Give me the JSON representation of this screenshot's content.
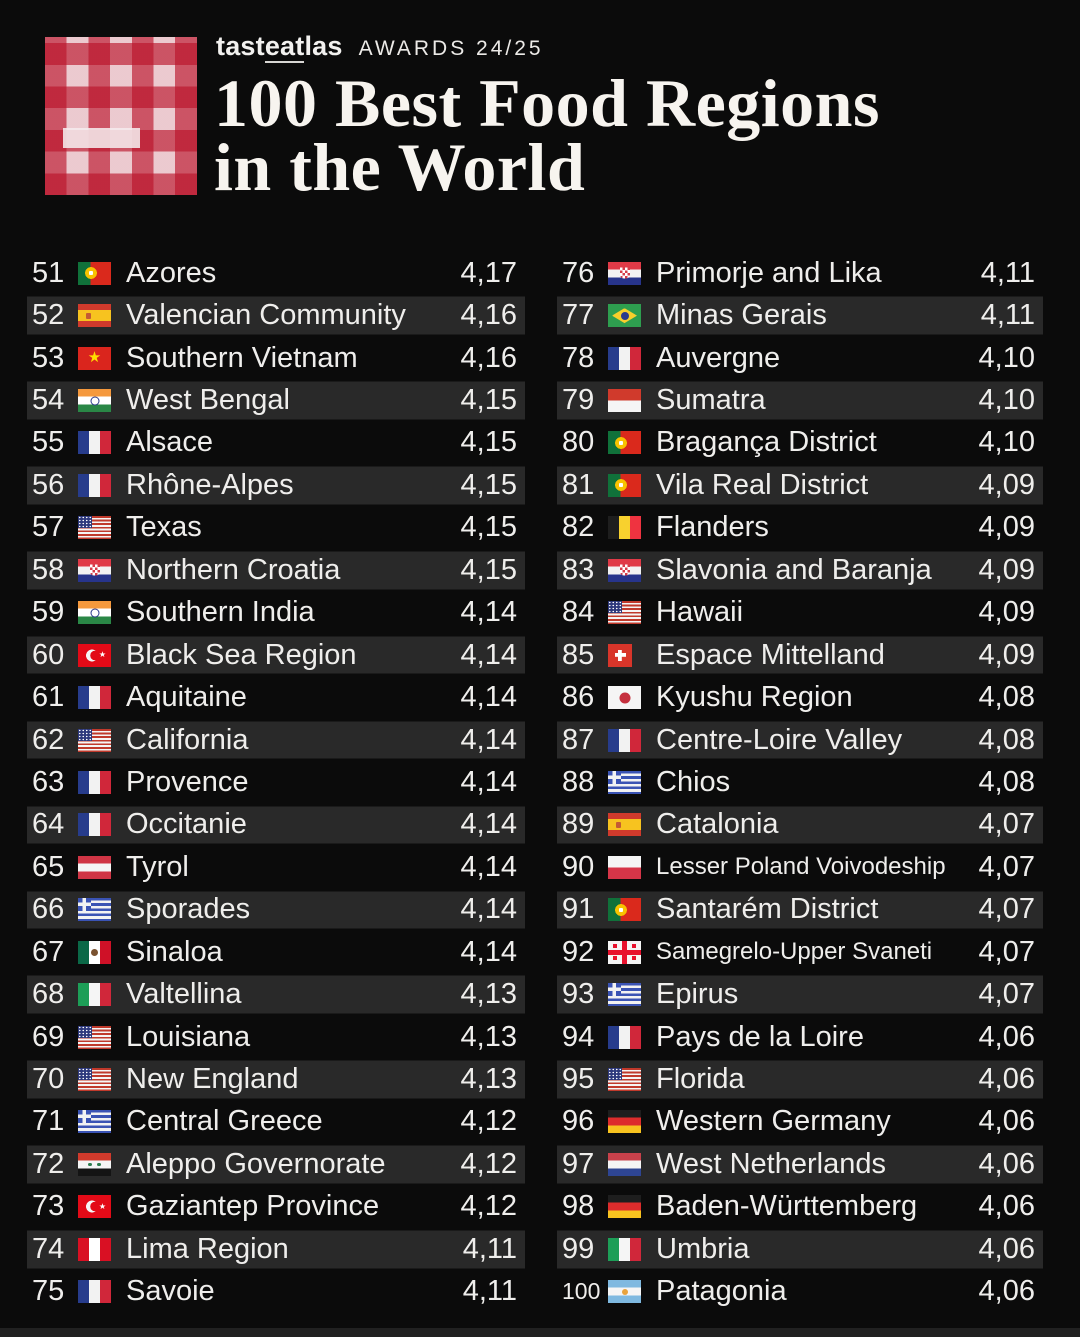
{
  "header": {
    "brand_pre": "tast",
    "brand_underlined": "eat",
    "brand_post": "las",
    "awards_label": "AWARDS 24/25",
    "title_line1": "100 Best Food Regions",
    "title_line2": "in the World"
  },
  "colors": {
    "background": "#0b0b0b",
    "row_stripe": "#292929",
    "text": "#efeeec",
    "title_text": "#f7f4ef",
    "footer_strip": "#212121",
    "logo_red": "#b91128",
    "logo_base": "#f2e2e5"
  },
  "list": {
    "columns": [
      {
        "entries": [
          {
            "rank": "51",
            "flag": "portugal",
            "name": "Azores",
            "score": "4,17"
          },
          {
            "rank": "52",
            "flag": "spain",
            "name": "Valencian Community",
            "score": "4,16"
          },
          {
            "rank": "53",
            "flag": "vietnam",
            "name": "Southern Vietnam",
            "score": "4,16"
          },
          {
            "rank": "54",
            "flag": "india",
            "name": "West Bengal",
            "score": "4,15"
          },
          {
            "rank": "55",
            "flag": "france",
            "name": "Alsace",
            "score": "4,15"
          },
          {
            "rank": "56",
            "flag": "france",
            "name": "Rhône-Alpes",
            "score": "4,15"
          },
          {
            "rank": "57",
            "flag": "usa",
            "name": "Texas",
            "score": "4,15"
          },
          {
            "rank": "58",
            "flag": "croatia",
            "name": "Northern Croatia",
            "score": "4,15"
          },
          {
            "rank": "59",
            "flag": "india",
            "name": "Southern India",
            "score": "4,14"
          },
          {
            "rank": "60",
            "flag": "turkey",
            "name": "Black Sea Region",
            "score": "4,14"
          },
          {
            "rank": "61",
            "flag": "france",
            "name": "Aquitaine",
            "score": "4,14"
          },
          {
            "rank": "62",
            "flag": "usa",
            "name": "California",
            "score": "4,14"
          },
          {
            "rank": "63",
            "flag": "france",
            "name": "Provence",
            "score": "4,14"
          },
          {
            "rank": "64",
            "flag": "france",
            "name": "Occitanie",
            "score": "4,14"
          },
          {
            "rank": "65",
            "flag": "austria",
            "name": "Tyrol",
            "score": "4,14"
          },
          {
            "rank": "66",
            "flag": "greece",
            "name": "Sporades",
            "score": "4,14"
          },
          {
            "rank": "67",
            "flag": "mexico",
            "name": "Sinaloa",
            "score": "4,14"
          },
          {
            "rank": "68",
            "flag": "italy",
            "name": "Valtellina",
            "score": "4,13"
          },
          {
            "rank": "69",
            "flag": "usa",
            "name": "Louisiana",
            "score": "4,13"
          },
          {
            "rank": "70",
            "flag": "usa",
            "name": "New England",
            "score": "4,13"
          },
          {
            "rank": "71",
            "flag": "greece",
            "name": "Central Greece",
            "score": "4,12"
          },
          {
            "rank": "72",
            "flag": "syria",
            "name": "Aleppo Governorate",
            "score": "4,12"
          },
          {
            "rank": "73",
            "flag": "turkey",
            "name": "Gaziantep Province",
            "score": "4,12"
          },
          {
            "rank": "74",
            "flag": "peru",
            "name": "Lima Region",
            "score": "4,11"
          },
          {
            "rank": "75",
            "flag": "france",
            "name": "Savoie",
            "score": "4,11"
          }
        ]
      },
      {
        "entries": [
          {
            "rank": "76",
            "flag": "croatia",
            "name": "Primorje and Lika",
            "score": "4,11"
          },
          {
            "rank": "77",
            "flag": "brazil",
            "name": "Minas Gerais",
            "score": "4,11"
          },
          {
            "rank": "78",
            "flag": "france",
            "name": "Auvergne",
            "score": "4,10"
          },
          {
            "rank": "79",
            "flag": "indonesia",
            "name": "Sumatra",
            "score": "4,10"
          },
          {
            "rank": "80",
            "flag": "portugal",
            "name": "Bragança District",
            "score": "4,10"
          },
          {
            "rank": "81",
            "flag": "portugal",
            "name": "Vila Real District",
            "score": "4,09"
          },
          {
            "rank": "82",
            "flag": "belgium",
            "name": "Flanders",
            "score": "4,09"
          },
          {
            "rank": "83",
            "flag": "croatia",
            "name": "Slavonia and Baranja",
            "score": "4,09"
          },
          {
            "rank": "84",
            "flag": "usa",
            "name": "Hawaii",
            "score": "4,09"
          },
          {
            "rank": "85",
            "flag": "switzerland",
            "name": "Espace Mittelland",
            "score": "4,09"
          },
          {
            "rank": "86",
            "flag": "japan",
            "name": "Kyushu Region",
            "score": "4,08"
          },
          {
            "rank": "87",
            "flag": "france",
            "name": "Centre-Loire Valley",
            "score": "4,08"
          },
          {
            "rank": "88",
            "flag": "greece",
            "name": "Chios",
            "score": "4,08"
          },
          {
            "rank": "89",
            "flag": "spain",
            "name": "Catalonia",
            "score": "4,07"
          },
          {
            "rank": "90",
            "flag": "poland",
            "name": "Lesser Poland Voivodeship",
            "score": "4,07"
          },
          {
            "rank": "91",
            "flag": "portugal",
            "name": "Santarém District",
            "score": "4,07"
          },
          {
            "rank": "92",
            "flag": "georgia",
            "name": "Samegrelo-Upper Svaneti",
            "score": "4,07"
          },
          {
            "rank": "93",
            "flag": "greece",
            "name": "Epirus",
            "score": "4,07"
          },
          {
            "rank": "94",
            "flag": "france",
            "name": "Pays de la Loire",
            "score": "4,06"
          },
          {
            "rank": "95",
            "flag": "usa",
            "name": "Florida",
            "score": "4,06"
          },
          {
            "rank": "96",
            "flag": "germany",
            "name": "Western Germany",
            "score": "4,06"
          },
          {
            "rank": "97",
            "flag": "netherlands",
            "name": "West Netherlands",
            "score": "4,06"
          },
          {
            "rank": "98",
            "flag": "germany",
            "name": "Baden-Württemberg",
            "score": "4,06"
          },
          {
            "rank": "99",
            "flag": "italy",
            "name": "Umbria",
            "score": "4,06"
          },
          {
            "rank": "100",
            "flag": "argentina",
            "name": "Patagonia",
            "score": "4,06"
          }
        ]
      }
    ]
  }
}
